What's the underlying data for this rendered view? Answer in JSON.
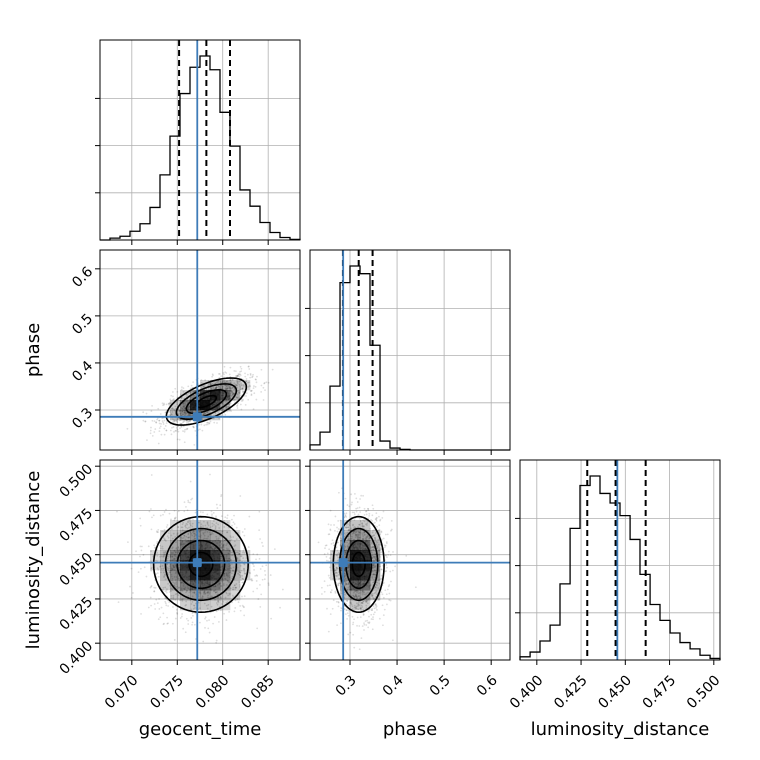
{
  "chart_data": {
    "type": "corner",
    "parameters": [
      "geocent_time",
      "phase",
      "luminosity_distance"
    ],
    "colors": {
      "truth": "#3e7cb8",
      "lines": "#000000",
      "grid": "#b0b0b0"
    },
    "grid": true,
    "ranges": {
      "geocent_time": [
        0.0665,
        0.0885
      ],
      "phase": [
        0.215,
        0.64
      ],
      "luminosity_distance": [
        0.3905,
        0.5035
      ]
    },
    "ticks": {
      "geocent_time": [
        "0.070",
        "0.075",
        "0.080",
        "0.085"
      ],
      "phase": [
        "0.3",
        "0.4",
        "0.5",
        "0.6"
      ],
      "luminosity_distance": [
        "0.400",
        "0.425",
        "0.450",
        "0.475",
        "0.500"
      ]
    },
    "truths": {
      "geocent_time": 0.0772,
      "phase": 0.2855,
      "luminosity_distance": 0.4455
    },
    "quantiles": {
      "geocent_time": [
        0.0752,
        0.0782,
        0.0808
      ],
      "phase": [
        0.285,
        0.3185,
        0.348
      ],
      "luminosity_distance": [
        0.4285,
        0.4445,
        0.4615
      ]
    },
    "histograms": {
      "geocent_time": {
        "edges": [
          0.0665,
          0.0676,
          0.0687,
          0.0698,
          0.0709,
          0.072,
          0.0731,
          0.0742,
          0.0753,
          0.0764,
          0.0775,
          0.0786,
          0.0797,
          0.0808,
          0.0819,
          0.083,
          0.0841,
          0.0852,
          0.0863,
          0.0874,
          0.0885
        ],
        "counts": [
          0,
          3,
          6,
          14,
          26,
          52,
          104,
          166,
          234,
          276,
          294,
          272,
          204,
          150,
          80,
          54,
          28,
          12,
          4,
          1
        ]
      },
      "phase": {
        "edges": [
          0.215,
          0.2363,
          0.2575,
          0.2788,
          0.3,
          0.3213,
          0.3425,
          0.3638,
          0.385,
          0.4063,
          0.4275,
          0.4488,
          0.47,
          0.4913,
          0.5125,
          0.5338,
          0.555,
          0.5763,
          0.5975,
          0.6188,
          0.64
        ],
        "counts": [
          8,
          28,
          100,
          262,
          288,
          276,
          164,
          14,
          3,
          1,
          0,
          0,
          0,
          0,
          0,
          0,
          0,
          0,
          0,
          0
        ]
      },
      "luminosity_distance": {
        "edges": [
          0.3905,
          0.3962,
          0.4018,
          0.4075,
          0.4131,
          0.4188,
          0.4244,
          0.4301,
          0.4357,
          0.4414,
          0.447,
          0.4527,
          0.4583,
          0.464,
          0.4696,
          0.4753,
          0.4809,
          0.4866,
          0.4922,
          0.4979,
          0.5035
        ],
        "counts": [
          4,
          10,
          24,
          44,
          96,
          166,
          220,
          232,
          210,
          198,
          182,
          152,
          108,
          70,
          50,
          34,
          22,
          14,
          6,
          2
        ]
      }
    },
    "pairs": [
      {
        "x": "geocent_time",
        "y": "phase",
        "center": [
          0.0782,
          0.318
        ],
        "sd": [
          0.0022,
          0.025
        ],
        "correlation": 0.62
      },
      {
        "x": "geocent_time",
        "y": "luminosity_distance",
        "center": [
          0.0776,
          0.4445
        ],
        "sd": [
          0.0026,
          0.0135
        ],
        "correlation": 0.0
      },
      {
        "x": "phase",
        "y": "luminosity_distance",
        "center": [
          0.3185,
          0.4445
        ],
        "sd": [
          0.027,
          0.0135
        ],
        "correlation": 0.0
      }
    ]
  }
}
